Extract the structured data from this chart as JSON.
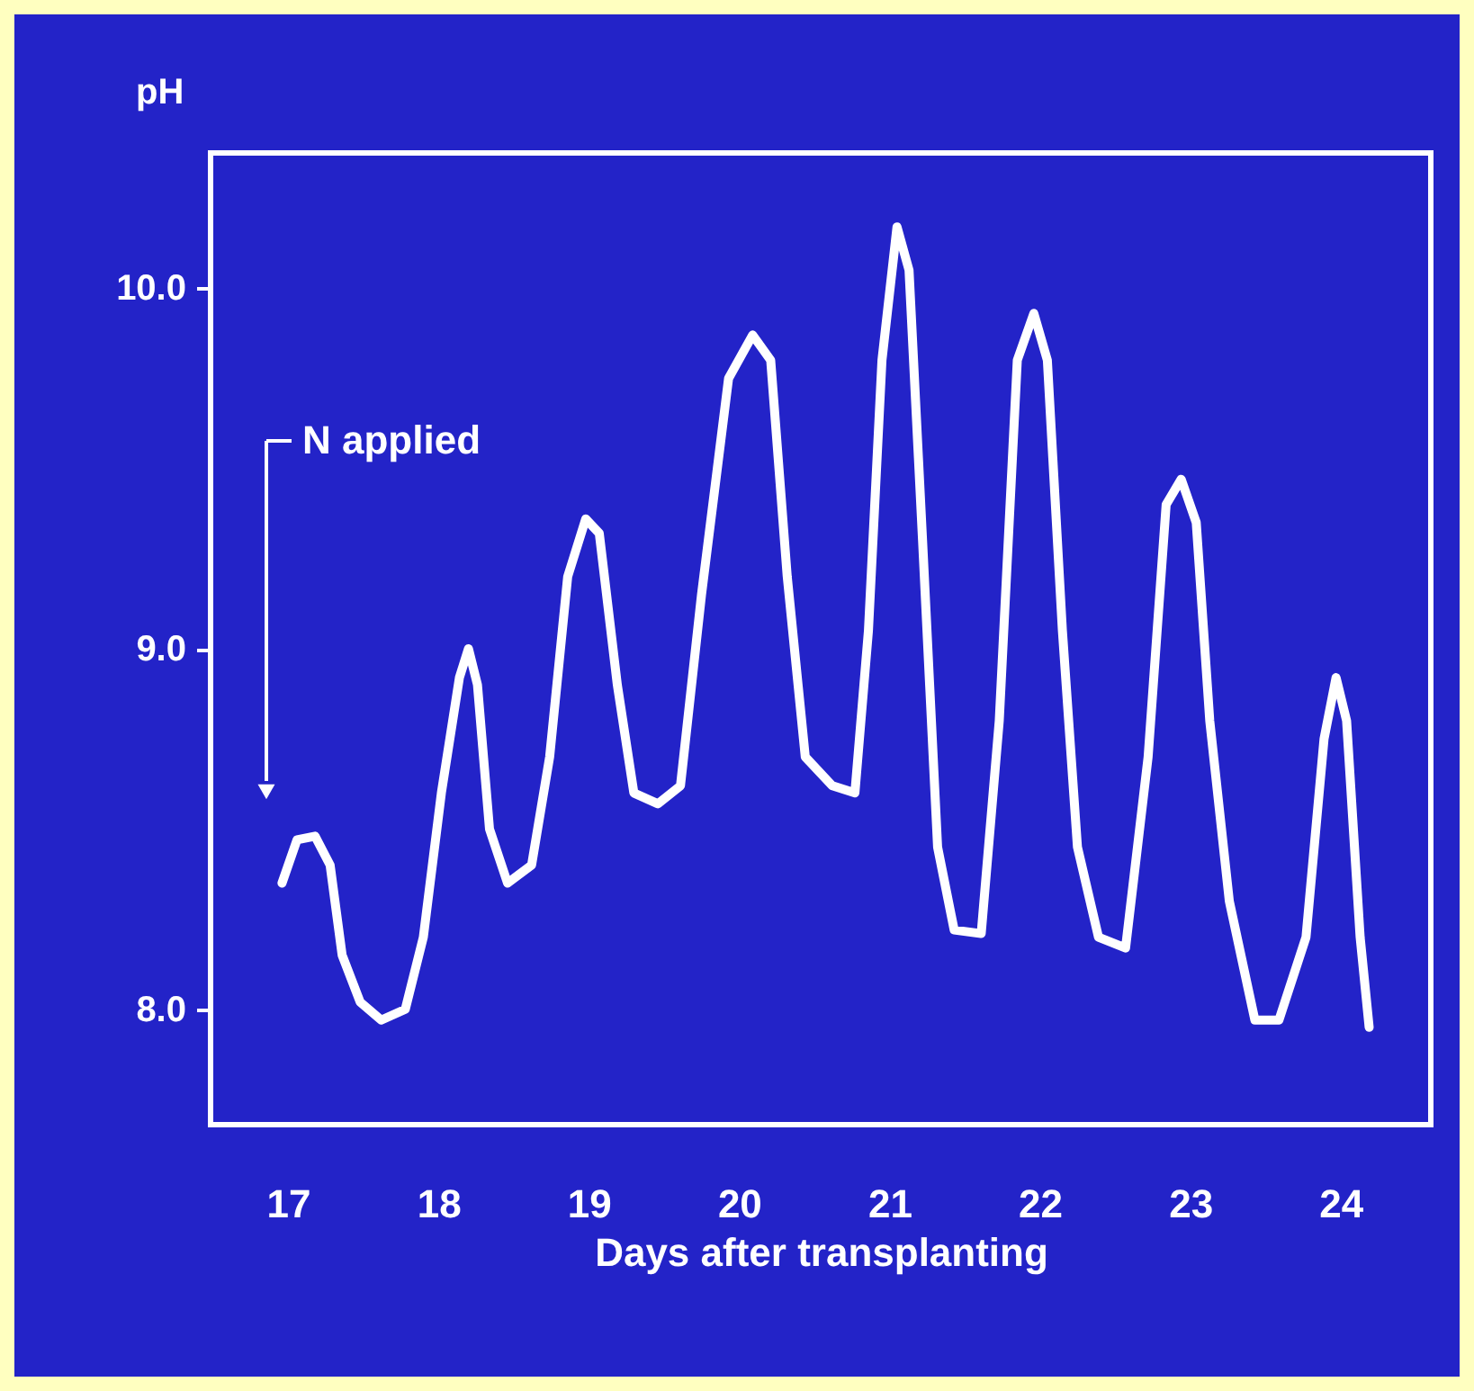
{
  "chart_data": {
    "type": "line",
    "xlabel": "Days after transplanting",
    "ylabel": "pH",
    "xlim": [
      16.485,
      24.6
    ],
    "ylim": [
      7.68,
      10.375
    ],
    "xticks": [
      17,
      18,
      19,
      20,
      21,
      22,
      23,
      24
    ],
    "yticks": [
      {
        "value": 8,
        "label": "8.0"
      },
      {
        "value": 9,
        "label": "9.0"
      },
      {
        "value": 10,
        "label": "10.0"
      }
    ],
    "grid": false,
    "marker": "none",
    "line_style": "solid",
    "x": [
      16.96,
      17.06,
      17.18,
      17.28,
      17.36,
      17.48,
      17.62,
      17.78,
      17.9,
      18.02,
      18.14,
      18.2,
      18.26,
      18.34,
      18.46,
      18.62,
      18.74,
      18.86,
      18.98,
      19.07,
      19.19,
      19.3,
      19.46,
      19.61,
      19.75,
      19.93,
      20.09,
      20.21,
      20.32,
      20.44,
      20.62,
      20.77,
      20.86,
      20.95,
      21.05,
      21.13,
      21.22,
      21.32,
      21.43,
      21.61,
      21.73,
      21.85,
      21.96,
      22.05,
      22.15,
      22.25,
      22.39,
      22.57,
      22.72,
      22.84,
      22.94,
      23.04,
      23.13,
      23.26,
      23.43,
      23.59,
      23.77,
      23.89,
      23.97,
      24.04,
      24.13,
      24.19
    ],
    "series": [
      {
        "color": "#ffffff",
        "values": [
          8.35,
          8.47,
          8.48,
          8.4,
          8.15,
          8.02,
          7.97,
          8.0,
          8.2,
          8.6,
          8.92,
          9.0,
          8.9,
          8.5,
          8.35,
          8.4,
          8.7,
          9.2,
          9.36,
          9.32,
          8.9,
          8.6,
          8.57,
          8.62,
          9.15,
          9.75,
          9.87,
          9.8,
          9.2,
          8.7,
          8.62,
          8.6,
          9.05,
          9.8,
          10.17,
          10.05,
          9.3,
          8.45,
          8.22,
          8.21,
          8.8,
          9.8,
          9.93,
          9.8,
          9.05,
          8.45,
          8.2,
          8.17,
          8.7,
          9.4,
          9.47,
          9.35,
          8.8,
          8.3,
          7.97,
          7.97,
          8.2,
          8.75,
          8.92,
          8.8,
          8.2,
          7.95
        ]
      }
    ],
    "annotations": [
      "N applied"
    ]
  }
}
